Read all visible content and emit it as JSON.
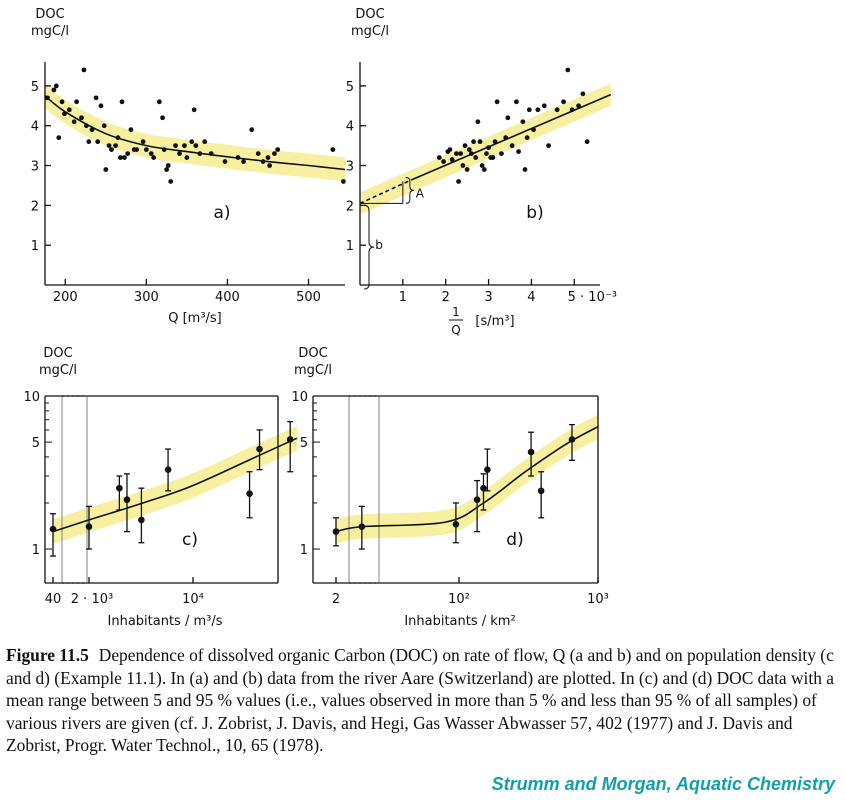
{
  "caption": {
    "label": "Figure 11.5",
    "text": "Dependence of dissolved organic Carbon (DOC) on rate of flow, Q (a and b) and on population density (c and d) (Example 11.1). In (a) and (b) data from the river Aare (Switzerland) are plotted. In (c) and (d) DOC data with a mean range between 5 and 95 % values (i.e., values observed in more than 5 % and less than 95 % of all samples) of various rivers are given (cf. J. Zobrist, J. Davis, and Hegi, Gas Wasser Abwasser 57, 402 (1977) and J. Davis and Zobrist, Progr. Water Technol., 10, 65 (1978).",
    "credit": "Strumm and Morgan, Aquatic Chemistry"
  },
  "colors": {
    "band": "#f7f0a0",
    "ink": "#111111",
    "credit": "#12a0a8"
  },
  "chart_data": [
    {
      "id": "a",
      "type": "scatter",
      "panel_label": "a)",
      "ylabel_line1": "DOC",
      "ylabel_line2": "mgC/l",
      "xlabel": "Q [m³/s]",
      "xlim": [
        175,
        545
      ],
      "ylim": [
        0,
        5.6
      ],
      "xticks": [
        200,
        300,
        400,
        500
      ],
      "xticklabels": [
        "200",
        "300",
        "400",
        "500"
      ],
      "yticks": [
        1,
        2,
        3,
        4,
        5
      ],
      "yticklabels": [
        "1",
        "2",
        "3",
        "4",
        "5"
      ],
      "points": [
        {
          "x": 178,
          "y": 4.7
        },
        {
          "x": 186,
          "y": 4.9
        },
        {
          "x": 189,
          "y": 5.0
        },
        {
          "x": 192,
          "y": 3.7
        },
        {
          "x": 196,
          "y": 4.6
        },
        {
          "x": 199,
          "y": 4.3
        },
        {
          "x": 205,
          "y": 4.4
        },
        {
          "x": 211,
          "y": 4.1
        },
        {
          "x": 214,
          "y": 4.6
        },
        {
          "x": 220,
          "y": 4.2
        },
        {
          "x": 223,
          "y": 5.4
        },
        {
          "x": 226,
          "y": 4.0
        },
        {
          "x": 229,
          "y": 3.6
        },
        {
          "x": 233,
          "y": 3.9
        },
        {
          "x": 238,
          "y": 4.7
        },
        {
          "x": 240,
          "y": 3.6
        },
        {
          "x": 244,
          "y": 4.5
        },
        {
          "x": 248,
          "y": 4.0
        },
        {
          "x": 250,
          "y": 2.9
        },
        {
          "x": 254,
          "y": 3.5
        },
        {
          "x": 257,
          "y": 3.4
        },
        {
          "x": 262,
          "y": 3.5
        },
        {
          "x": 265,
          "y": 3.7
        },
        {
          "x": 268,
          "y": 3.2
        },
        {
          "x": 270,
          "y": 4.6
        },
        {
          "x": 273,
          "y": 3.2
        },
        {
          "x": 277,
          "y": 3.3
        },
        {
          "x": 281,
          "y": 3.9
        },
        {
          "x": 285,
          "y": 3.4
        },
        {
          "x": 288,
          "y": 3.4
        },
        {
          "x": 296,
          "y": 3.6
        },
        {
          "x": 300,
          "y": 3.4
        },
        {
          "x": 306,
          "y": 3.3
        },
        {
          "x": 309,
          "y": 3.2
        },
        {
          "x": 316,
          "y": 4.6
        },
        {
          "x": 320,
          "y": 4.2
        },
        {
          "x": 322,
          "y": 3.4
        },
        {
          "x": 325,
          "y": 2.9
        },
        {
          "x": 327,
          "y": 3.0
        },
        {
          "x": 330,
          "y": 2.6
        },
        {
          "x": 336,
          "y": 3.5
        },
        {
          "x": 341,
          "y": 3.3
        },
        {
          "x": 347,
          "y": 3.5
        },
        {
          "x": 350,
          "y": 3.2
        },
        {
          "x": 356,
          "y": 3.6
        },
        {
          "x": 359,
          "y": 4.4
        },
        {
          "x": 361,
          "y": 3.5
        },
        {
          "x": 366,
          "y": 3.3
        },
        {
          "x": 372,
          "y": 3.6
        },
        {
          "x": 380,
          "y": 3.3
        },
        {
          "x": 397,
          "y": 3.1
        },
        {
          "x": 413,
          "y": 3.2
        },
        {
          "x": 420,
          "y": 3.1
        },
        {
          "x": 430,
          "y": 3.9
        },
        {
          "x": 438,
          "y": 3.3
        },
        {
          "x": 444,
          "y": 3.1
        },
        {
          "x": 450,
          "y": 3.2
        },
        {
          "x": 452,
          "y": 3.0
        },
        {
          "x": 458,
          "y": 3.3
        },
        {
          "x": 462,
          "y": 3.4
        },
        {
          "x": 530,
          "y": 3.4
        },
        {
          "x": 543,
          "y": 2.6
        }
      ],
      "fit": {
        "x": [
          175,
          200,
          250,
          300,
          350,
          400,
          450,
          500,
          545
        ],
        "y": [
          4.75,
          4.35,
          3.8,
          3.5,
          3.35,
          3.22,
          3.1,
          3.0,
          2.9
        ]
      },
      "band_halfwidth": 0.3
    },
    {
      "id": "b",
      "type": "scatter",
      "panel_label": "b)",
      "ylabel_line1": "DOC",
      "ylabel_line2": "mgC/l",
      "xlabel_frac_num": "1",
      "xlabel_frac_den": "Q",
      "xlabel_unit": "[s/m³]",
      "xlim": [
        0,
        5.6
      ],
      "ylim": [
        0,
        5.6
      ],
      "xticks": [
        1,
        2,
        3,
        4,
        5
      ],
      "xticklabels": [
        "1",
        "2",
        "3",
        "4",
        "5 · 10⁻³"
      ],
      "yticks": [
        1,
        2,
        3,
        4,
        5
      ],
      "yticklabels": [
        "1",
        "2",
        "3",
        "4",
        "5"
      ],
      "points": [
        {
          "x": 1.85,
          "y": 3.2
        },
        {
          "x": 1.95,
          "y": 3.1
        },
        {
          "x": 2.05,
          "y": 3.35
        },
        {
          "x": 2.1,
          "y": 3.4
        },
        {
          "x": 2.15,
          "y": 3.15
        },
        {
          "x": 2.25,
          "y": 3.3
        },
        {
          "x": 2.3,
          "y": 2.6
        },
        {
          "x": 2.35,
          "y": 3.3
        },
        {
          "x": 2.4,
          "y": 3.0
        },
        {
          "x": 2.45,
          "y": 3.5
        },
        {
          "x": 2.5,
          "y": 2.9
        },
        {
          "x": 2.55,
          "y": 3.4
        },
        {
          "x": 2.6,
          "y": 3.3
        },
        {
          "x": 2.65,
          "y": 3.6
        },
        {
          "x": 2.7,
          "y": 3.2
        },
        {
          "x": 2.75,
          "y": 4.1
        },
        {
          "x": 2.8,
          "y": 3.6
        },
        {
          "x": 2.85,
          "y": 3.0
        },
        {
          "x": 2.9,
          "y": 2.9
        },
        {
          "x": 2.95,
          "y": 3.3
        },
        {
          "x": 3.0,
          "y": 3.45
        },
        {
          "x": 3.05,
          "y": 3.2
        },
        {
          "x": 3.1,
          "y": 3.2
        },
        {
          "x": 3.15,
          "y": 3.6
        },
        {
          "x": 3.2,
          "y": 4.6
        },
        {
          "x": 3.3,
          "y": 3.3
        },
        {
          "x": 3.4,
          "y": 3.7
        },
        {
          "x": 3.45,
          "y": 4.2
        },
        {
          "x": 3.55,
          "y": 3.5
        },
        {
          "x": 3.65,
          "y": 4.6
        },
        {
          "x": 3.7,
          "y": 3.35
        },
        {
          "x": 3.8,
          "y": 4.1
        },
        {
          "x": 3.85,
          "y": 2.9
        },
        {
          "x": 3.9,
          "y": 3.7
        },
        {
          "x": 3.95,
          "y": 4.4
        },
        {
          "x": 4.05,
          "y": 3.9
        },
        {
          "x": 4.15,
          "y": 4.4
        },
        {
          "x": 4.3,
          "y": 4.5
        },
        {
          "x": 4.4,
          "y": 3.5
        },
        {
          "x": 4.6,
          "y": 4.4
        },
        {
          "x": 4.75,
          "y": 4.6
        },
        {
          "x": 4.85,
          "y": 5.4
        },
        {
          "x": 4.95,
          "y": 4.4
        },
        {
          "x": 5.1,
          "y": 4.5
        },
        {
          "x": 5.2,
          "y": 4.8
        },
        {
          "x": 5.3,
          "y": 3.6
        }
      ],
      "fit": {
        "x": [
          1.2,
          5.85
        ],
        "y": [
          2.64,
          4.78
        ]
      },
      "fit_dashed": {
        "x": [
          0,
          1.2
        ],
        "y": [
          2.05,
          2.64
        ]
      },
      "band_halfwidth": 0.28,
      "annotation_A": "A",
      "annotation_b": "b"
    },
    {
      "id": "c",
      "type": "scatter",
      "panel_label": "c)",
      "ylabel_line1": "DOC",
      "ylabel_line2": "mgC/l",
      "xlabel": "Inhabitants / m³/s",
      "x_scale": "log",
      "y_scale": "log",
      "yticks": [
        1,
        5,
        10
      ],
      "yticklabels": [
        "1",
        "5",
        "10"
      ],
      "xticklabels": [
        "40",
        "2 · 10³",
        "10⁴"
      ],
      "points": [
        {
          "x": 40,
          "y": 1.35,
          "y_low": 0.9,
          "y_high": 1.7
        },
        {
          "x": 2000,
          "y": 1.4,
          "y_low": 1.0,
          "y_high": 1.9
        },
        {
          "x": 3200,
          "y": 2.5,
          "y_low": 1.8,
          "y_high": 3.0
        },
        {
          "x": 3600,
          "y": 2.1,
          "y_low": 1.3,
          "y_high": 3.1
        },
        {
          "x": 4500,
          "y": 1.55,
          "y_low": 1.1,
          "y_high": 2.5
        },
        {
          "x": 6800,
          "y": 3.3,
          "y_low": 2.4,
          "y_high": 4.5
        },
        {
          "x": 24000,
          "y": 2.3,
          "y_low": 1.6,
          "y_high": 3.2
        },
        {
          "x": 28000,
          "y": 4.5,
          "y_low": 3.3,
          "y_high": 6.0
        },
        {
          "x": 45000,
          "y": 5.2,
          "y_low": 3.2,
          "y_high": 6.8
        }
      ]
    },
    {
      "id": "d",
      "type": "scatter",
      "panel_label": "d)",
      "ylabel_line1": "DOC",
      "ylabel_line2": "mgC/l",
      "xlabel": "Inhabitants / km²",
      "x_scale": "log",
      "y_scale": "log",
      "yticks": [
        1,
        5,
        10
      ],
      "yticklabels": [
        "1",
        "5",
        "10"
      ],
      "xticklabels": [
        "2",
        "10²",
        "10³"
      ],
      "points": [
        {
          "x": 2,
          "y": 1.3,
          "y_low": 1.05,
          "y_high": 1.6
        },
        {
          "x": 20,
          "y": 1.4,
          "y_low": 1.0,
          "y_high": 1.9
        },
        {
          "x": 95,
          "y": 1.45,
          "y_low": 1.1,
          "y_high": 2.0
        },
        {
          "x": 135,
          "y": 2.1,
          "y_low": 1.3,
          "y_high": 2.8
        },
        {
          "x": 150,
          "y": 2.5,
          "y_low": 1.8,
          "y_high": 3.1
        },
        {
          "x": 160,
          "y": 3.3,
          "y_low": 2.4,
          "y_high": 4.5
        },
        {
          "x": 330,
          "y": 4.3,
          "y_low": 3.0,
          "y_high": 5.8
        },
        {
          "x": 390,
          "y": 2.4,
          "y_low": 1.6,
          "y_high": 3.2
        },
        {
          "x": 650,
          "y": 5.2,
          "y_low": 3.8,
          "y_high": 6.5
        }
      ]
    }
  ]
}
